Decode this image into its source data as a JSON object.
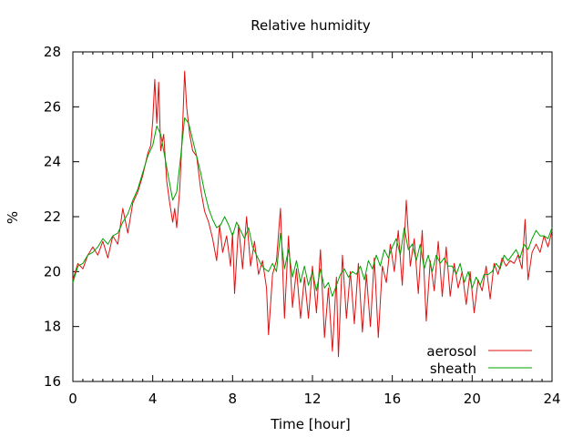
{
  "chart_data": {
    "type": "line",
    "title": "Relative humidity",
    "xlabel": "Time [hour]",
    "ylabel": "%",
    "xlim": [
      0,
      24
    ],
    "ylim": [
      16,
      28
    ],
    "x_ticks": [
      "0",
      "4",
      "8",
      "12",
      "16",
      "20",
      "24"
    ],
    "y_ticks": [
      "16",
      "18",
      "20",
      "22",
      "24",
      "26",
      "28"
    ],
    "grid": false,
    "legend_position": "bottom-right",
    "series": [
      {
        "name": "aerosol",
        "color": "#e01010",
        "points": [
          [
            0,
            19.7
          ],
          [
            0.25,
            20.3
          ],
          [
            0.5,
            20.1
          ],
          [
            0.75,
            20.6
          ],
          [
            1,
            20.9
          ],
          [
            1.25,
            20.6
          ],
          [
            1.5,
            21.1
          ],
          [
            1.75,
            20.5
          ],
          [
            2,
            21.3
          ],
          [
            2.25,
            21.0
          ],
          [
            2.5,
            22.3
          ],
          [
            2.75,
            21.4
          ],
          [
            3,
            22.5
          ],
          [
            3.25,
            22.9
          ],
          [
            3.5,
            23.5
          ],
          [
            3.75,
            24.3
          ],
          [
            3.9,
            24.6
          ],
          [
            4.0,
            25.5
          ],
          [
            4.1,
            27.0
          ],
          [
            4.2,
            25.4
          ],
          [
            4.3,
            26.9
          ],
          [
            4.4,
            24.4
          ],
          [
            4.55,
            25.0
          ],
          [
            4.7,
            23.3
          ],
          [
            4.85,
            22.5
          ],
          [
            5.0,
            21.8
          ],
          [
            5.1,
            22.3
          ],
          [
            5.2,
            21.6
          ],
          [
            5.35,
            23.0
          ],
          [
            5.5,
            25.3
          ],
          [
            5.6,
            27.3
          ],
          [
            5.7,
            26.0
          ],
          [
            5.85,
            25.0
          ],
          [
            6.0,
            24.4
          ],
          [
            6.2,
            24.2
          ],
          [
            6.4,
            23.0
          ],
          [
            6.6,
            22.2
          ],
          [
            6.8,
            21.8
          ],
          [
            7.0,
            21.2
          ],
          [
            7.2,
            20.4
          ],
          [
            7.35,
            21.7
          ],
          [
            7.5,
            20.7
          ],
          [
            7.7,
            21.3
          ],
          [
            7.9,
            20.2
          ],
          [
            8.0,
            21.4
          ],
          [
            8.1,
            19.2
          ],
          [
            8.3,
            21.7
          ],
          [
            8.5,
            20.1
          ],
          [
            8.7,
            22.0
          ],
          [
            8.9,
            20.2
          ],
          [
            9.1,
            21.1
          ],
          [
            9.3,
            19.9
          ],
          [
            9.5,
            20.4
          ],
          [
            9.7,
            19.4
          ],
          [
            9.8,
            17.7
          ],
          [
            10.0,
            19.9
          ],
          [
            10.2,
            20.4
          ],
          [
            10.4,
            22.3
          ],
          [
            10.6,
            18.3
          ],
          [
            10.8,
            21.3
          ],
          [
            11.0,
            18.7
          ],
          [
            11.2,
            20.1
          ],
          [
            11.4,
            18.3
          ],
          [
            11.6,
            19.8
          ],
          [
            11.8,
            18.3
          ],
          [
            12.0,
            20.2
          ],
          [
            12.2,
            18.5
          ],
          [
            12.4,
            20.8
          ],
          [
            12.6,
            17.6
          ],
          [
            12.8,
            19.4
          ],
          [
            13.0,
            17.1
          ],
          [
            13.2,
            19.8
          ],
          [
            13.3,
            16.9
          ],
          [
            13.5,
            20.6
          ],
          [
            13.7,
            18.3
          ],
          [
            13.9,
            20.0
          ],
          [
            14.1,
            18.1
          ],
          [
            14.3,
            20.3
          ],
          [
            14.5,
            17.8
          ],
          [
            14.7,
            19.9
          ],
          [
            14.9,
            18.0
          ],
          [
            15.1,
            20.5
          ],
          [
            15.3,
            17.6
          ],
          [
            15.5,
            20.2
          ],
          [
            15.7,
            19.6
          ],
          [
            15.9,
            21.0
          ],
          [
            16.1,
            20.0
          ],
          [
            16.3,
            21.5
          ],
          [
            16.5,
            19.5
          ],
          [
            16.7,
            22.6
          ],
          [
            16.9,
            20.2
          ],
          [
            17.1,
            21.2
          ],
          [
            17.3,
            19.2
          ],
          [
            17.5,
            21.5
          ],
          [
            17.7,
            18.2
          ],
          [
            17.9,
            20.4
          ],
          [
            18.1,
            19.3
          ],
          [
            18.3,
            21.1
          ],
          [
            18.5,
            19.1
          ],
          [
            18.7,
            20.9
          ],
          [
            18.9,
            19.1
          ],
          [
            19.1,
            20.3
          ],
          [
            19.3,
            19.4
          ],
          [
            19.5,
            20.0
          ],
          [
            19.7,
            18.8
          ],
          [
            19.9,
            20.0
          ],
          [
            20.1,
            18.5
          ],
          [
            20.3,
            19.7
          ],
          [
            20.5,
            19.3
          ],
          [
            20.7,
            20.2
          ],
          [
            20.9,
            19.0
          ],
          [
            21.1,
            20.3
          ],
          [
            21.3,
            19.9
          ],
          [
            21.5,
            20.5
          ],
          [
            21.7,
            20.2
          ],
          [
            21.9,
            20.4
          ],
          [
            22.1,
            20.3
          ],
          [
            22.3,
            20.6
          ],
          [
            22.5,
            20.1
          ],
          [
            22.65,
            21.9
          ],
          [
            22.8,
            19.7
          ],
          [
            23.0,
            20.7
          ],
          [
            23.2,
            21.0
          ],
          [
            23.4,
            20.7
          ],
          [
            23.6,
            21.3
          ],
          [
            23.8,
            20.9
          ],
          [
            24.0,
            21.5
          ]
        ]
      },
      {
        "name": "sheath",
        "color": "#00a000",
        "points": [
          [
            0,
            19.6
          ],
          [
            0.25,
            20.2
          ],
          [
            0.5,
            20.3
          ],
          [
            0.75,
            20.6
          ],
          [
            1,
            20.7
          ],
          [
            1.25,
            20.9
          ],
          [
            1.5,
            21.2
          ],
          [
            1.75,
            21.0
          ],
          [
            2,
            21.3
          ],
          [
            2.25,
            21.4
          ],
          [
            2.5,
            21.8
          ],
          [
            2.75,
            22.1
          ],
          [
            3,
            22.6
          ],
          [
            3.25,
            23.0
          ],
          [
            3.5,
            23.6
          ],
          [
            3.75,
            24.2
          ],
          [
            4.0,
            24.6
          ],
          [
            4.2,
            25.3
          ],
          [
            4.4,
            25.0
          ],
          [
            4.6,
            24.2
          ],
          [
            4.8,
            23.4
          ],
          [
            5.0,
            22.6
          ],
          [
            5.2,
            22.9
          ],
          [
            5.4,
            24.2
          ],
          [
            5.6,
            25.6
          ],
          [
            5.8,
            25.4
          ],
          [
            6.0,
            24.8
          ],
          [
            6.2,
            24.2
          ],
          [
            6.4,
            23.6
          ],
          [
            6.6,
            22.9
          ],
          [
            6.8,
            22.3
          ],
          [
            7.0,
            21.9
          ],
          [
            7.2,
            21.6
          ],
          [
            7.4,
            21.7
          ],
          [
            7.6,
            22.0
          ],
          [
            7.8,
            21.7
          ],
          [
            8.0,
            21.3
          ],
          [
            8.2,
            21.8
          ],
          [
            8.4,
            21.5
          ],
          [
            8.6,
            21.2
          ],
          [
            8.8,
            21.6
          ],
          [
            9.0,
            20.9
          ],
          [
            9.2,
            20.6
          ],
          [
            9.4,
            20.3
          ],
          [
            9.6,
            20.1
          ],
          [
            9.8,
            20.0
          ],
          [
            10.0,
            20.3
          ],
          [
            10.2,
            20.0
          ],
          [
            10.4,
            21.4
          ],
          [
            10.6,
            20.1
          ],
          [
            10.8,
            20.8
          ],
          [
            11.0,
            19.8
          ],
          [
            11.2,
            20.4
          ],
          [
            11.4,
            19.6
          ],
          [
            11.6,
            20.2
          ],
          [
            11.8,
            19.5
          ],
          [
            12.0,
            20.0
          ],
          [
            12.2,
            19.3
          ],
          [
            12.4,
            20.1
          ],
          [
            12.6,
            19.4
          ],
          [
            12.8,
            19.6
          ],
          [
            13.0,
            19.1
          ],
          [
            13.2,
            19.5
          ],
          [
            13.4,
            19.9
          ],
          [
            13.6,
            20.1
          ],
          [
            13.8,
            19.8
          ],
          [
            14.0,
            20.0
          ],
          [
            14.2,
            19.9
          ],
          [
            14.4,
            20.2
          ],
          [
            14.6,
            19.7
          ],
          [
            14.8,
            20.4
          ],
          [
            15.0,
            20.1
          ],
          [
            15.2,
            20.6
          ],
          [
            15.4,
            20.2
          ],
          [
            15.6,
            20.8
          ],
          [
            15.8,
            20.5
          ],
          [
            16.0,
            20.9
          ],
          [
            16.2,
            21.2
          ],
          [
            16.4,
            20.6
          ],
          [
            16.6,
            21.6
          ],
          [
            16.8,
            20.8
          ],
          [
            17.0,
            21.0
          ],
          [
            17.2,
            20.4
          ],
          [
            17.4,
            21.0
          ],
          [
            17.6,
            20.1
          ],
          [
            17.8,
            20.6
          ],
          [
            18.0,
            20.0
          ],
          [
            18.2,
            20.6
          ],
          [
            18.4,
            20.3
          ],
          [
            18.6,
            20.5
          ],
          [
            18.8,
            20.2
          ],
          [
            19.0,
            20.2
          ],
          [
            19.2,
            19.9
          ],
          [
            19.4,
            20.3
          ],
          [
            19.6,
            19.6
          ],
          [
            19.8,
            20.0
          ],
          [
            20.0,
            19.4
          ],
          [
            20.2,
            19.8
          ],
          [
            20.4,
            19.5
          ],
          [
            20.6,
            19.9
          ],
          [
            20.8,
            19.9
          ],
          [
            21.0,
            20.0
          ],
          [
            21.2,
            20.3
          ],
          [
            21.4,
            20.1
          ],
          [
            21.6,
            20.6
          ],
          [
            21.8,
            20.4
          ],
          [
            22.0,
            20.6
          ],
          [
            22.2,
            20.8
          ],
          [
            22.4,
            20.5
          ],
          [
            22.6,
            21.0
          ],
          [
            22.8,
            20.8
          ],
          [
            23.0,
            21.2
          ],
          [
            23.2,
            21.5
          ],
          [
            23.4,
            21.3
          ],
          [
            23.6,
            21.3
          ],
          [
            23.8,
            21.2
          ],
          [
            24.0,
            21.6
          ]
        ]
      }
    ]
  }
}
